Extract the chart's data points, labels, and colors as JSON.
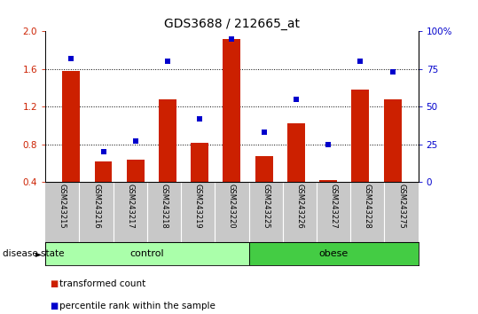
{
  "title": "GDS3688 / 212665_at",
  "samples": [
    "GSM243215",
    "GSM243216",
    "GSM243217",
    "GSM243218",
    "GSM243219",
    "GSM243220",
    "GSM243225",
    "GSM243226",
    "GSM243227",
    "GSM243228",
    "GSM243275"
  ],
  "transformed_count": [
    1.58,
    0.62,
    0.64,
    1.28,
    0.82,
    1.92,
    0.68,
    1.02,
    0.42,
    1.38,
    1.28
  ],
  "percentile_rank": [
    82,
    20,
    27,
    80,
    42,
    95,
    33,
    55,
    25,
    80,
    73
  ],
  "control_count": 6,
  "obese_count": 5,
  "bar_color": "#CC2000",
  "dot_color": "#0000CC",
  "ylim_left": [
    0.4,
    2.0
  ],
  "ylim_right": [
    0,
    100
  ],
  "yticks_left": [
    0.4,
    0.8,
    1.2,
    1.6,
    2.0
  ],
  "yticks_right": [
    0,
    25,
    50,
    75,
    100
  ],
  "ytick_labels_right": [
    "0",
    "25",
    "50",
    "75",
    "100%"
  ],
  "grid_values": [
    0.8,
    1.2,
    1.6
  ],
  "plot_bg": "#ffffff",
  "tick_area_color": "#C8C8C8",
  "ctrl_color": "#AAFFAA",
  "obese_color": "#44CC44",
  "legend_items": [
    "transformed count",
    "percentile rank within the sample"
  ],
  "bar_width": 0.55
}
